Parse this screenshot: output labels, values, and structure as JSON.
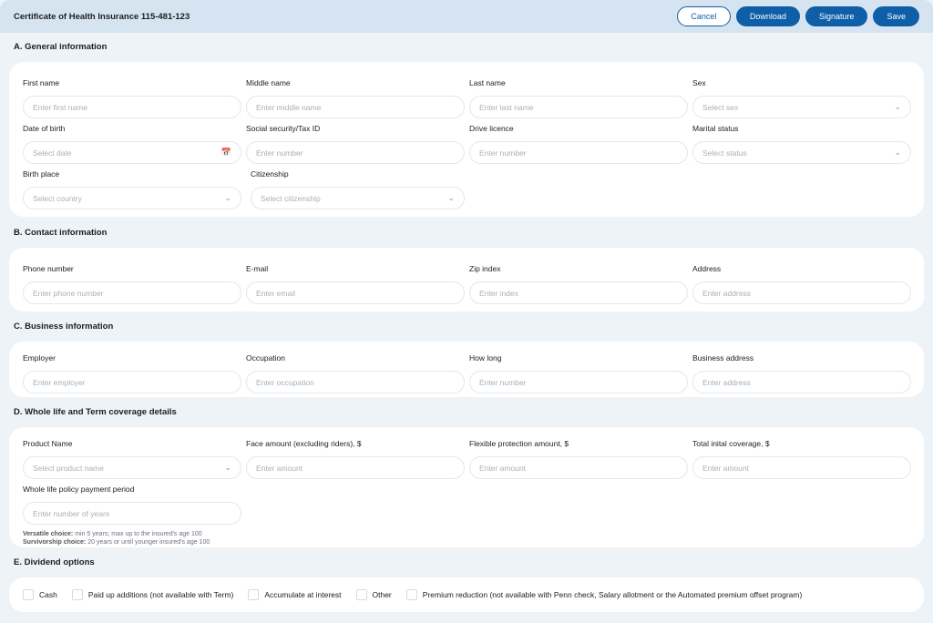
{
  "header": {
    "title": "Certificate of Health Insurance 115-481-123",
    "buttons": {
      "cancel": "Cancel",
      "download": "Download",
      "signature": "Signature",
      "save": "Save"
    }
  },
  "sections": {
    "a": {
      "title": "A. General information",
      "fields": [
        {
          "label": "First name",
          "placeholder": "Enter first name"
        },
        {
          "label": "Middle name",
          "placeholder": "Enter middle name"
        },
        {
          "label": "Last name",
          "placeholder": "Enter last name"
        },
        {
          "label": "Sex",
          "placeholder": "Select sex",
          "icon": "chevron-down"
        },
        {
          "label": "Date of birth",
          "placeholder": "Select date",
          "icon": "calendar"
        },
        {
          "label": "Social security/Tax ID",
          "placeholder": "Enter number"
        },
        {
          "label": "Drive licence",
          "placeholder": "Enter number"
        },
        {
          "label": "Marital status",
          "placeholder": "Select status",
          "icon": "chevron-down"
        },
        {
          "label": "Birth place",
          "placeholder": "Select country",
          "icon": "chevron-down"
        },
        {
          "label": "Citizenship",
          "placeholder": "Select citizenship",
          "icon": "chevron-down"
        }
      ]
    },
    "b": {
      "title": "B. Contact information",
      "fields": [
        {
          "label": "Phone number",
          "placeholder": "Enter phone number"
        },
        {
          "label": "E-mail",
          "placeholder": "Enter email"
        },
        {
          "label": "Zip index",
          "placeholder": "Enter index"
        },
        {
          "label": "Address",
          "placeholder": "Enter address"
        }
      ]
    },
    "c": {
      "title": "C. Business information",
      "fields": [
        {
          "label": "Employer",
          "placeholder": "Enter employer"
        },
        {
          "label": "Occupation",
          "placeholder": "Enter occupation"
        },
        {
          "label": "How long",
          "placeholder": "Enter number"
        },
        {
          "label": "Business address",
          "placeholder": "Enter address"
        }
      ]
    },
    "d": {
      "title": "D. Whole life and Term coverage details",
      "fields": [
        {
          "label": "Product Name",
          "placeholder": "Select product name",
          "icon": "chevron-down"
        },
        {
          "label": "Face amount (excluding riders), $",
          "placeholder": "Enter amount"
        },
        {
          "label": "Flexible protection amount, $",
          "placeholder": "Enter amount"
        },
        {
          "label": "Total inital coverage, $",
          "placeholder": "Enter amount"
        },
        {
          "label": "Whole life policy payment period",
          "placeholder": "Enter number of years"
        }
      ],
      "hints": [
        {
          "bold": "Versatile choice:",
          "text": " min 5 years; max up to the insured's age 100"
        },
        {
          "bold": "Survivorship choice:",
          "text": " 20 years or until younger insured's age 100"
        }
      ]
    },
    "e": {
      "title": "E. Dividend options",
      "options": [
        "Cash",
        "Paid up additions (not available with Term)",
        "Accumulate at interest",
        "Other",
        "Premium reduction (not available with Penn check, Salary allotment or the Automated premium offset program)"
      ]
    }
  }
}
